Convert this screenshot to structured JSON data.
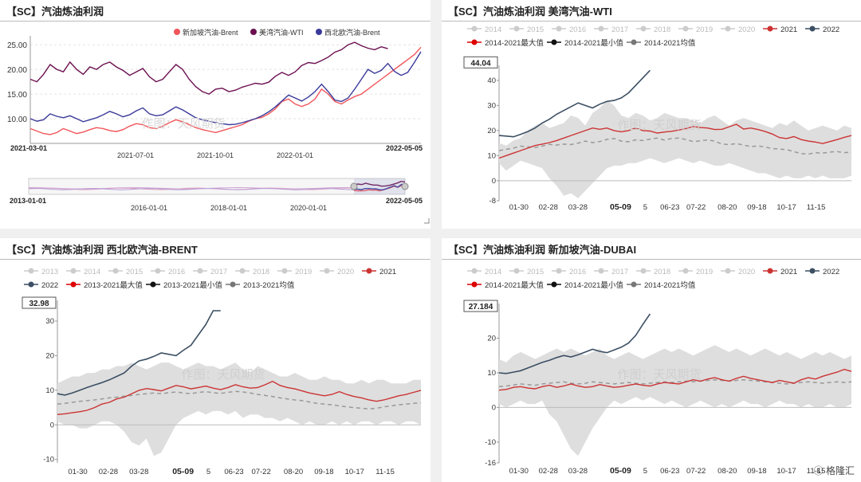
{
  "watermark": "作图：天风期货",
  "corner_logo": "格隆汇",
  "chart_data": [
    {
      "id": "p1",
      "title": "【SC】汽油炼油利润",
      "type": "line",
      "legend": [
        "新加坡汽油-Brent",
        "美湾汽油-WTI",
        "西北欧汽油-Brent"
      ],
      "colors": [
        "#f0555a",
        "#6b0f4f",
        "#3b3a9a"
      ],
      "y_ticks": [
        "25.00",
        "20.00",
        "15.00",
        "10.00"
      ],
      "ylim": [
        5,
        26
      ],
      "x_labels_top": [
        "2021-03-01",
        "2022-05-05"
      ],
      "x_labels_bottom": [
        "2021-07-01",
        "2021-10-01",
        "2022-01-01"
      ],
      "slider_labels": [
        "2013-01-01",
        "2016-01-01",
        "2018-01-01",
        "2020-01-01",
        "2022-05-05"
      ],
      "series": [
        {
          "name": "新加坡汽油-Brent",
          "values": [
            8,
            7.5,
            7,
            6.8,
            7.2,
            8,
            7.5,
            7,
            7.3,
            7.8,
            8.2,
            8,
            7.6,
            7.4,
            7.8,
            8.5,
            9,
            8.8,
            8.2,
            8,
            8.5,
            9.2,
            9.8,
            9.4,
            8.8,
            8.2,
            7.8,
            7.5,
            7.2,
            7.6,
            8,
            8.4,
            8.8,
            9.5,
            10,
            10.3,
            11,
            12,
            13.5,
            14,
            13,
            12.5,
            13,
            14,
            16,
            15,
            13.5,
            13,
            13.8,
            14.5,
            15,
            16,
            17,
            18,
            19,
            20,
            21,
            22,
            23,
            24.5
          ]
        },
        {
          "name": "美湾汽油-WTI",
          "values": [
            18,
            17.5,
            19,
            21,
            20,
            19.5,
            21.5,
            20,
            19,
            20.5,
            20,
            21,
            21.5,
            20.5,
            19.8,
            18.8,
            19.5,
            20.2,
            18.5,
            17.5,
            18,
            19.5,
            21,
            20,
            18,
            16.5,
            15.5,
            15,
            16,
            16.2,
            15.5,
            15.8,
            16.4,
            16.8,
            17.2,
            17,
            17.4,
            18.6,
            19.4,
            18.8,
            19.5,
            20.8,
            21.4,
            21.2,
            21.8,
            22.5,
            23.5,
            24,
            25,
            25.5,
            24.8,
            24.3,
            24,
            24.6,
            24.2,
            null,
            null,
            null,
            null,
            null
          ]
        },
        {
          "name": "西北欧汽油-Brent",
          "values": [
            10,
            9.5,
            9.8,
            11,
            10.5,
            10.2,
            10.6,
            10,
            9.4,
            9.8,
            10.2,
            10.8,
            11.5,
            11,
            10.4,
            10.8,
            11.6,
            12.2,
            11,
            10.6,
            10.8,
            11.6,
            12.4,
            11.8,
            11,
            10.2,
            9.8,
            9.5,
            9.2,
            9,
            8.8,
            8.9,
            9.2,
            9.6,
            10,
            10.6,
            11.4,
            12.4,
            13.6,
            14.8,
            14.2,
            13.6,
            14.4,
            15.5,
            17,
            15.5,
            13.8,
            13.5,
            14.2,
            16,
            18,
            20,
            19.2,
            19.8,
            21.2,
            19.6,
            18.8,
            19.4,
            21.4,
            23.6
          ]
        }
      ]
    },
    {
      "id": "p2",
      "title": "【SC】汽油炼油利润 美湾汽油-WTI",
      "type": "line",
      "legend": [
        "2014",
        "2015",
        "2016",
        "2017",
        "2018",
        "2019",
        "2020",
        "2021",
        "2022",
        "2014-2021最大值",
        "2014-2021最小值",
        "2014-2021均值"
      ],
      "colors": {
        "year": "#cccccc",
        "y2021": "#cc3333",
        "y2022": "#3c4f63",
        "max": "#dd0000",
        "min": "#111111",
        "avg": "#777777"
      },
      "y_ticks": [
        -8,
        0,
        10,
        20,
        30,
        40
      ],
      "ylim": [
        -8,
        46
      ],
      "x_ticks": [
        "01-30",
        "02-28",
        "03-28",
        "05-09",
        "5",
        "06-23",
        "07-22",
        "08-20",
        "09-18",
        "10-17",
        "11-15"
      ],
      "highlight_label": "05-09",
      "tooltip_value": "44.04",
      "band_upper": [
        15,
        14,
        16,
        17,
        20,
        22,
        23,
        21,
        22,
        23,
        26,
        25,
        22,
        27,
        29,
        32,
        30,
        26,
        25,
        27,
        26,
        24,
        25,
        27,
        26,
        25,
        25,
        24,
        23,
        25,
        26,
        24,
        22,
        24,
        25,
        24,
        23,
        22,
        21,
        23,
        22,
        24,
        22,
        20,
        21,
        22,
        21,
        20,
        22,
        21
      ],
      "band_lower": [
        7,
        4,
        6,
        8,
        7,
        6,
        5,
        1,
        -2,
        -6,
        -5,
        -7,
        -4,
        -1,
        2,
        5,
        6,
        6,
        7,
        7,
        8,
        9,
        8,
        7,
        8,
        9,
        8,
        7,
        8,
        7,
        6,
        6,
        7,
        6,
        5,
        4,
        3,
        3,
        2,
        1,
        2,
        1,
        1,
        2,
        1,
        2,
        1,
        1,
        1,
        2
      ],
      "avg": [
        12,
        12.5,
        13,
        13.8,
        13.5,
        13.2,
        13.8,
        14.5,
        14.2,
        14.6,
        14.4,
        15,
        15.8,
        15.2,
        15.6,
        16.5,
        16.8,
        15.8,
        15.5,
        16.3,
        16,
        16.6,
        17,
        16.2,
        16.8,
        17,
        16.4,
        15.6,
        15.9,
        16.3,
        15.8,
        14.6,
        14.4,
        14.8,
        14.2,
        13.6,
        13.9,
        13.4,
        12.8,
        12.6,
        12.4,
        11.6,
        10.8,
        10.6,
        11.2,
        11,
        11.4,
        11.6,
        11.2,
        11.4
      ],
      "y2021": [
        9,
        10,
        11,
        12,
        13,
        14,
        14.6,
        15.2,
        16,
        17,
        18,
        19,
        20,
        21,
        20.5,
        21,
        20,
        19.5,
        20,
        21,
        20,
        19.8,
        19,
        19.4,
        19.7,
        20.2,
        20.8,
        21.6,
        21.2,
        21,
        20.4,
        20.5,
        21.5,
        22.5,
        20.6,
        21,
        20.4,
        19.6,
        18.6,
        17.2,
        16.8,
        17.6,
        16.4,
        15.8,
        15.4,
        14.8,
        15.6,
        16.4,
        17.3,
        18
      ],
      "y2022": [
        18,
        17.8,
        17.5,
        18.5,
        19.6,
        21,
        23,
        24.5,
        26.5,
        28,
        29.5,
        31,
        30,
        29,
        30.5,
        31.6,
        32,
        33,
        35,
        38,
        41,
        44,
        null,
        null,
        null,
        null,
        null,
        null,
        null,
        null,
        null,
        null,
        null,
        null,
        null,
        null,
        null,
        null,
        null,
        null,
        null,
        null,
        null,
        null,
        null,
        null,
        null,
        null,
        null,
        null
      ]
    },
    {
      "id": "p3",
      "title": "【SC】汽油炼油利润 西北欧汽油-BRENT",
      "type": "line",
      "legend": [
        "2013",
        "2014",
        "2015",
        "2016",
        "2017",
        "2018",
        "2019",
        "2020",
        "2021",
        "2022",
        "2013-2021最大值",
        "2013-2021最小值",
        "2013-2021均值"
      ],
      "colors": {
        "year": "#cccccc",
        "y2021": "#cc3333",
        "y2022": "#3c4f63",
        "max": "#dd0000",
        "min": "#111111",
        "avg": "#777777"
      },
      "y_ticks": [
        -10,
        0,
        10,
        20,
        30
      ],
      "ylim": [
        -11,
        36
      ],
      "x_ticks": [
        "01-30",
        "02-28",
        "03-28",
        "05-09",
        "5",
        "06-23",
        "07-22",
        "08-20",
        "09-18",
        "10-17",
        "11-15"
      ],
      "highlight_label": "05-09",
      "tooltip_value": "32.98",
      "band_upper": [
        12,
        13,
        14,
        14,
        15,
        15,
        16,
        16,
        17,
        17,
        18,
        17,
        16,
        17,
        18,
        18,
        17,
        16,
        17,
        18,
        17,
        17,
        16,
        17,
        18,
        16,
        15,
        17,
        16,
        15,
        14,
        14,
        15,
        14,
        13,
        13,
        14,
        13,
        13,
        12,
        12,
        13,
        12,
        13,
        13,
        12,
        12,
        12,
        13,
        13
      ],
      "band_lower": [
        1,
        0,
        0,
        -1,
        -1,
        0,
        1,
        1,
        0,
        -2,
        -5,
        -6,
        -4,
        -9,
        -8,
        -4,
        0,
        2,
        3,
        4,
        3,
        4,
        4,
        3,
        4,
        2,
        3,
        3,
        2,
        2,
        1,
        2,
        1,
        0,
        1,
        0,
        0,
        1,
        0,
        1,
        0,
        1,
        1,
        0,
        1,
        1,
        0,
        1,
        1,
        0
      ],
      "avg": [
        6,
        6.2,
        6.5,
        6.8,
        7,
        7.2,
        7.5,
        7.8,
        8,
        8.3,
        8.5,
        8.8,
        9,
        9.2,
        9,
        9.3,
        9.5,
        9.2,
        9,
        9.4,
        9.6,
        9.3,
        9.1,
        9.4,
        9.7,
        9.5,
        9.2,
        8.8,
        8.5,
        8.2,
        7.8,
        7.5,
        7.2,
        7,
        6.6,
        6.2,
        6,
        5.8,
        5.5,
        5.2,
        5,
        4.8,
        4.6,
        4.8,
        5.2,
        5.5,
        5.8,
        6,
        6.2,
        6.4
      ],
      "y2021": [
        3,
        3.2,
        3.5,
        3.8,
        4.2,
        5,
        6,
        6.5,
        7.5,
        8,
        9,
        10,
        10.5,
        10.2,
        9.8,
        10.6,
        11.4,
        11,
        10.4,
        10.8,
        11.2,
        10.6,
        10.2,
        10.8,
        11.6,
        11,
        10.6,
        10.8,
        11.6,
        12.6,
        11.4,
        10.8,
        10.4,
        9.8,
        9.2,
        8.8,
        8.4,
        8.8,
        9.6,
        8.8,
        8.2,
        7.8,
        7.2,
        6.8,
        7.2,
        7.8,
        8.4,
        8.8,
        9.4,
        10
      ],
      "y2022": [
        9,
        8.6,
        9.2,
        10,
        10.8,
        11.5,
        12.2,
        13,
        14,
        15,
        17,
        18.5,
        19,
        19.8,
        20.8,
        20.4,
        20,
        21.6,
        23,
        26,
        29,
        33,
        33,
        null,
        null,
        null,
        null,
        null,
        null,
        null,
        null,
        null,
        null,
        null,
        null,
        null,
        null,
        null,
        null,
        null,
        null,
        null,
        null,
        null,
        null,
        null,
        null,
        null,
        null,
        null
      ]
    },
    {
      "id": "p4",
      "title": "【SC】汽油炼油利润 新加坡汽油-DUBAI",
      "type": "line",
      "legend": [
        "2014",
        "2015",
        "2016",
        "2017",
        "2018",
        "2019",
        "2020",
        "2021",
        "2022",
        "2014-2021最大值",
        "2014-2021最小值",
        "2014-2021均值"
      ],
      "colors": {
        "year": "#cccccc",
        "y2021": "#cc3333",
        "y2022": "#3c4f63",
        "max": "#dd0000",
        "min": "#111111",
        "avg": "#777777"
      },
      "y_ticks": [
        -16,
        -10,
        0,
        10,
        20
      ],
      "ylim": [
        -16,
        30
      ],
      "x_ticks": [
        "01-30",
        "02-28",
        "03-28",
        "05-09",
        "5",
        "06-23",
        "07-22",
        "08-20",
        "09-18",
        "10-17",
        "11-15"
      ],
      "highlight_label": "05-09",
      "tooltip_value": "27.184",
      "band_upper": [
        14,
        13,
        15,
        16,
        15,
        14,
        15,
        16,
        17,
        16,
        17,
        16,
        15,
        16,
        17,
        15,
        14,
        15,
        16,
        15,
        14,
        15,
        16,
        17,
        16,
        17,
        16,
        15,
        16,
        17,
        18,
        17,
        16,
        17,
        16,
        15,
        16,
        17,
        16,
        15,
        16,
        15,
        14,
        15,
        16,
        15,
        16,
        15,
        14,
        15
      ],
      "band_lower": [
        1,
        0,
        1,
        2,
        1,
        1,
        2,
        -2,
        -4,
        -8,
        -12,
        -14,
        -10,
        -6,
        -3,
        0,
        2,
        1,
        2,
        3,
        2,
        3,
        2,
        1,
        2,
        1,
        0,
        1,
        2,
        1,
        0,
        1,
        0,
        1,
        2,
        1,
        1,
        0,
        1,
        2,
        1,
        1,
        0,
        1,
        0,
        0,
        1,
        0,
        0,
        1
      ],
      "avg": [
        6,
        6.2,
        6.5,
        6.8,
        6.6,
        6.4,
        6.8,
        7,
        7.2,
        7.4,
        7,
        6.8,
        7,
        7.4,
        7.2,
        7,
        6.8,
        7,
        7.2,
        7,
        6.8,
        7,
        7.2,
        7.4,
        7.2,
        7.4,
        7.6,
        7.4,
        7.6,
        7.8,
        8,
        7.8,
        7.6,
        7.8,
        8,
        7.8,
        7.6,
        7.4,
        7.2,
        7,
        6.8,
        7,
        7.2,
        7.4,
        7.2,
        7,
        7.2,
        7.4,
        7.2,
        7.4
      ],
      "y2021": [
        5,
        5.2,
        5.8,
        6,
        5.6,
        5.4,
        6,
        6.4,
        5.8,
        6.2,
        6.8,
        6.2,
        5.8,
        6,
        6.6,
        6.2,
        5.8,
        6,
        6.4,
        6.8,
        6.4,
        6.2,
        6.8,
        7.2,
        7,
        6.8,
        7.4,
        8,
        7.6,
        8.2,
        8.6,
        8,
        7.6,
        8.4,
        9,
        8.4,
        8,
        7.6,
        7.2,
        7.8,
        7.4,
        7,
        8,
        8.6,
        8.2,
        9,
        9.6,
        10.2,
        11,
        10.4
      ],
      "y2022": [
        10,
        9.8,
        10.2,
        10.6,
        11.4,
        12.2,
        13,
        13.6,
        14.4,
        15,
        14.6,
        15.2,
        16,
        16.8,
        16.2,
        15.8,
        16.6,
        17.4,
        18.6,
        20.8,
        24,
        27,
        null,
        null,
        null,
        null,
        null,
        null,
        null,
        null,
        null,
        null,
        null,
        null,
        null,
        null,
        null,
        null,
        null,
        null,
        null,
        null,
        null,
        null,
        null,
        null,
        null,
        null,
        null,
        null
      ]
    }
  ]
}
